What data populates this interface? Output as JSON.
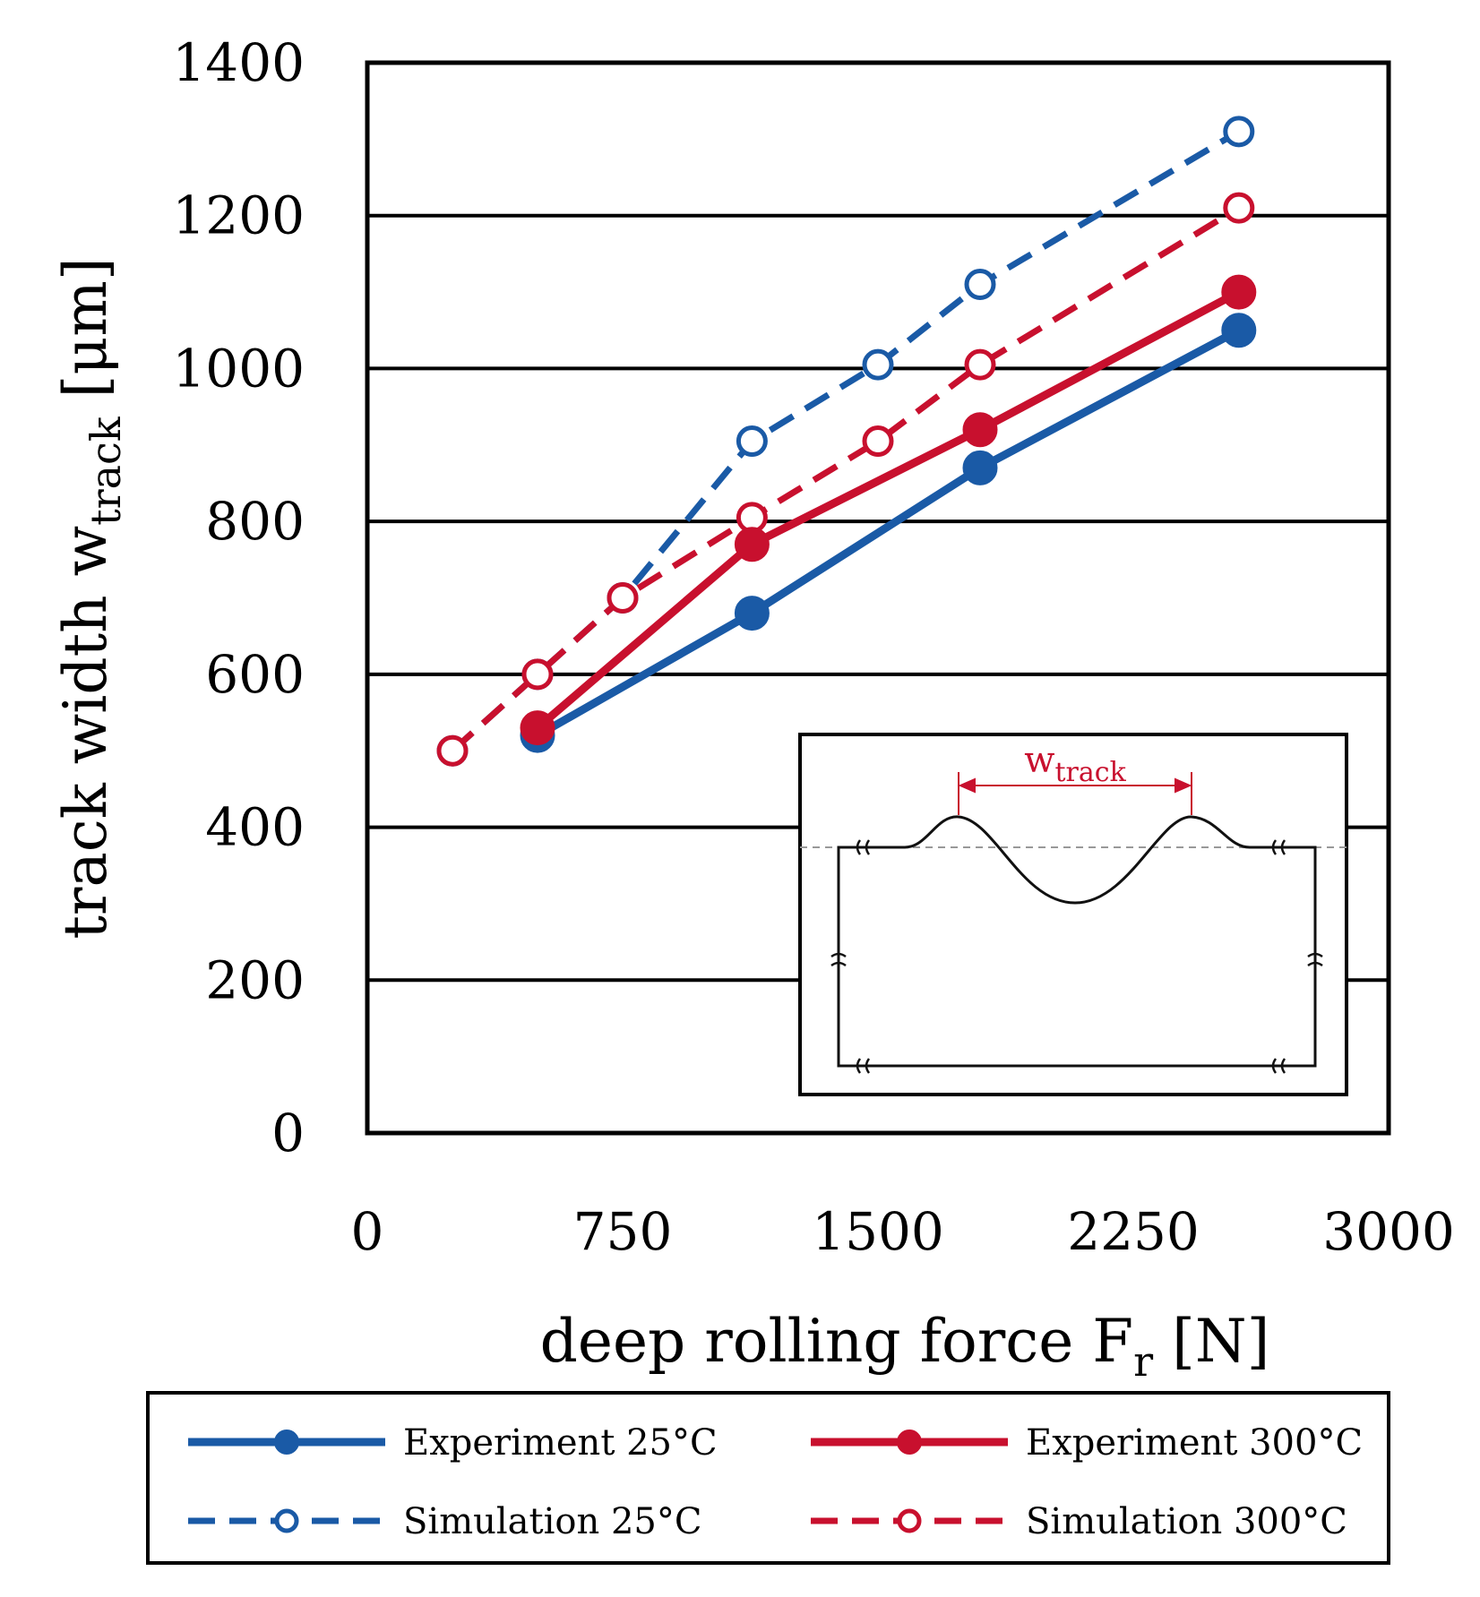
{
  "chart_data": {
    "type": "line",
    "title": "",
    "xlabel": {
      "main": "deep rolling force F",
      "sub": "r",
      "unit": " [N]"
    },
    "ylabel": {
      "main": "track width w",
      "sub": "track",
      "unit": " [μm]"
    },
    "xlim": [
      0,
      3000
    ],
    "ylim": [
      0,
      1400
    ],
    "xticks": [
      0,
      750,
      1500,
      2250,
      3000
    ],
    "yticks": [
      0,
      200,
      400,
      600,
      800,
      1000,
      1200,
      1400
    ],
    "grid": "horizontal",
    "legend_position": "bottom",
    "series": [
      {
        "name": "Experiment 25°C",
        "color": "#1a5aa6",
        "style": "solid",
        "marker": "filled",
        "x": [
          500,
          1130,
          1800,
          2560
        ],
        "y": [
          520,
          680,
          870,
          1050
        ]
      },
      {
        "name": "Experiment 300°C",
        "color": "#c8102e",
        "style": "solid",
        "marker": "filled",
        "x": [
          500,
          1130,
          1800,
          2560
        ],
        "y": [
          530,
          770,
          920,
          1100
        ]
      },
      {
        "name": "Simulation 25°C",
        "color": "#1a5aa6",
        "style": "dashed",
        "marker": "open",
        "x": [
          250,
          500,
          750,
          1130,
          1500,
          1800,
          2560
        ],
        "y": [
          500,
          600,
          700,
          905,
          1005,
          1110,
          1310
        ]
      },
      {
        "name": "Simulation 300°C",
        "color": "#c8102e",
        "style": "dashed",
        "marker": "open",
        "x": [
          250,
          500,
          750,
          1130,
          1500,
          1800,
          2560
        ],
        "y": [
          500,
          600,
          700,
          805,
          905,
          1005,
          1210
        ]
      }
    ],
    "inset": {
      "label_main": "w",
      "label_sub": "track"
    }
  }
}
